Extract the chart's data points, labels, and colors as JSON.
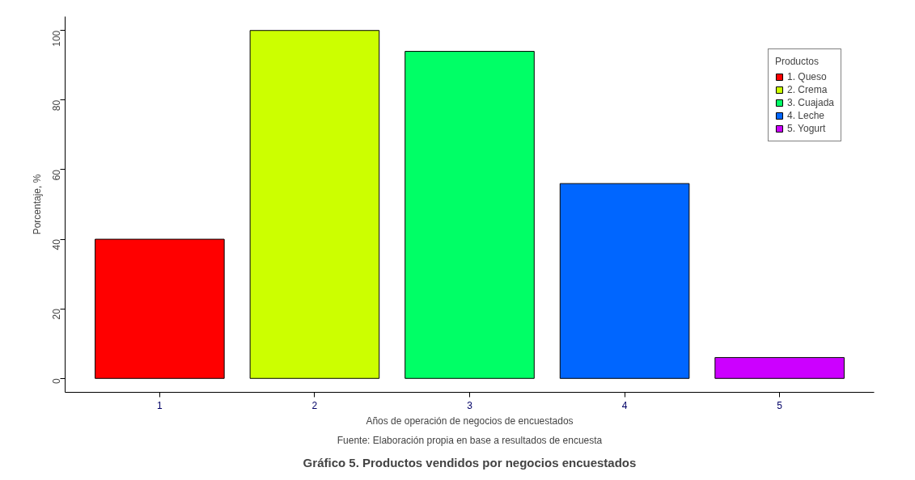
{
  "chart_data": {
    "type": "bar",
    "title": "Gráfico 5. Productos vendidos por negocios encuestados",
    "annotations": [
      "Fuente: Elaboración propia en base a resultados de encuesta"
    ],
    "xlabel": "Años de operación de negocios de encuestados",
    "ylabel": "Porcentaje, %",
    "legend_title": "Productos",
    "categories": [
      "1",
      "2",
      "3",
      "4",
      "5"
    ],
    "series": [
      {
        "name": "1. Queso",
        "color": "#ff0000",
        "values": [
          40,
          null,
          null,
          null,
          null
        ]
      },
      {
        "name": "2. Crema",
        "color": "#ccff00",
        "values": [
          null,
          100,
          null,
          null,
          null
        ]
      },
      {
        "name": "3. Cuajada",
        "color": "#00ff66",
        "values": [
          null,
          null,
          94,
          null,
          null
        ]
      },
      {
        "name": "4. Leche",
        "color": "#0066ff",
        "values": [
          null,
          null,
          null,
          56,
          null
        ]
      },
      {
        "name": "5. Yogurt",
        "color": "#cc00ff",
        "values": [
          null,
          null,
          null,
          null,
          6
        ]
      }
    ],
    "ylim": [
      -4,
      104
    ],
    "yticks": [
      0,
      20,
      40,
      60,
      80,
      100
    ],
    "grid": false,
    "legend": "top right"
  }
}
